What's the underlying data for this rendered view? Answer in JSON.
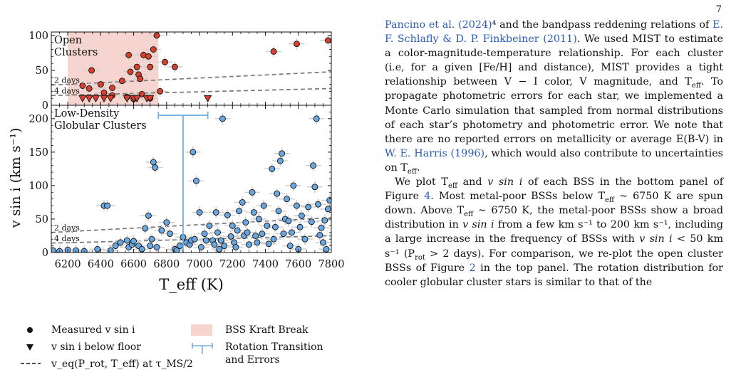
{
  "page_number": "7",
  "figure": {
    "top_panel": {
      "label_line1": "Open",
      "label_line2": "Clusters",
      "yticks": [
        "100",
        "50",
        "0"
      ],
      "curve_labels": [
        "2 days",
        "4 days"
      ]
    },
    "bottom_panel": {
      "label_line1": "Low-Density",
      "label_line2": "Globular Clusters",
      "yticks": [
        "200",
        "150",
        "100",
        "50",
        "0"
      ],
      "curve_labels": [
        "2 days",
        "4 days"
      ]
    },
    "ylabel": "v sin i (km s⁻¹)",
    "xlabel": "T_eff (K)",
    "xticks": [
      "6200",
      "6400",
      "6600",
      "6800",
      "7000",
      "7200",
      "7400",
      "7600",
      "7800"
    ],
    "colors": {
      "open": "#d7402e",
      "globular": "#6aa7e0",
      "kraft": "#f6d4d0",
      "transition": "#6fb1e0",
      "curve": "#7a7a7a"
    }
  },
  "chart_data": [
    {
      "type": "scatter",
      "title": "",
      "series_name": "Open Clusters",
      "xlim": [
        6100,
        7800
      ],
      "ylim": [
        0,
        105
      ],
      "kraft_break": [
        6200,
        6750
      ],
      "measured": [
        [
          6290,
          28
        ],
        [
          6330,
          24
        ],
        [
          6345,
          50
        ],
        [
          6400,
          30
        ],
        [
          6420,
          18
        ],
        [
          6470,
          25
        ],
        [
          6530,
          35
        ],
        [
          6570,
          72
        ],
        [
          6580,
          48
        ],
        [
          6620,
          55
        ],
        [
          6630,
          44
        ],
        [
          6640,
          38
        ],
        [
          6660,
          72
        ],
        [
          6690,
          70
        ],
        [
          6700,
          55
        ],
        [
          6720,
          80
        ],
        [
          6740,
          100
        ],
        [
          6760,
          20
        ],
        [
          6790,
          62
        ],
        [
          6850,
          55
        ],
        [
          7450,
          77
        ],
        [
          7590,
          88
        ],
        [
          7780,
          93
        ],
        [
          6470,
          14
        ],
        [
          6560,
          12
        ],
        [
          6650,
          16
        ],
        [
          6700,
          10
        ],
        [
          6600,
          9
        ]
      ],
      "floor_points": [
        [
          6290,
          10
        ],
        [
          6330,
          10
        ],
        [
          6370,
          10
        ],
        [
          6420,
          10
        ],
        [
          6460,
          10
        ],
        [
          6560,
          10
        ],
        [
          6600,
          10
        ],
        [
          6620,
          10
        ],
        [
          6680,
          10
        ],
        [
          6700,
          10
        ],
        [
          7050,
          10
        ]
      ],
      "curves": {
        "2 days": [
          [
            6100,
            29
          ],
          [
            7800,
            48
          ]
        ],
        "4 days": [
          [
            6100,
            14
          ],
          [
            7800,
            24
          ]
        ]
      }
    },
    {
      "type": "scatter",
      "title": "",
      "series_name": "Low-Density Globular Clusters",
      "xlim": [
        6100,
        7800
      ],
      "ylim": [
        0,
        220
      ],
      "transition": {
        "x": 6900,
        "xerr": [
          6750,
          7050
        ],
        "y": 205
      },
      "measured": [
        [
          6110,
          3
        ],
        [
          6150,
          2
        ],
        [
          6200,
          4
        ],
        [
          6250,
          3
        ],
        [
          6300,
          2
        ],
        [
          6380,
          5
        ],
        [
          6420,
          70
        ],
        [
          6440,
          70
        ],
        [
          6460,
          3
        ],
        [
          6490,
          10
        ],
        [
          6520,
          15
        ],
        [
          6560,
          18
        ],
        [
          6570,
          8
        ],
        [
          6590,
          12
        ],
        [
          6600,
          17
        ],
        [
          6630,
          10
        ],
        [
          6650,
          5
        ],
        [
          6670,
          36
        ],
        [
          6690,
          55
        ],
        [
          6700,
          10
        ],
        [
          6710,
          20
        ],
        [
          6720,
          135
        ],
        [
          6730,
          127
        ],
        [
          6740,
          8
        ],
        [
          6770,
          33
        ],
        [
          6800,
          45
        ],
        [
          6820,
          28
        ],
        [
          6850,
          5
        ],
        [
          6860,
          3
        ],
        [
          6880,
          10
        ],
        [
          6900,
          23
        ],
        [
          6920,
          15
        ],
        [
          6940,
          12
        ],
        [
          6950,
          18
        ],
        [
          6960,
          150
        ],
        [
          6970,
          20
        ],
        [
          6980,
          107
        ],
        [
          7000,
          60
        ],
        [
          7010,
          8
        ],
        [
          7030,
          28
        ],
        [
          7040,
          18
        ],
        [
          7060,
          40
        ],
        [
          7080,
          18
        ],
        [
          7090,
          12
        ],
        [
          7100,
          60
        ],
        [
          7110,
          30
        ],
        [
          7120,
          5
        ],
        [
          7130,
          18
        ],
        [
          7140,
          200
        ],
        [
          7150,
          10
        ],
        [
          7170,
          56
        ],
        [
          7190,
          24
        ],
        [
          7200,
          40
        ],
        [
          7210,
          15
        ],
        [
          7220,
          8
        ],
        [
          7230,
          33
        ],
        [
          7240,
          62
        ],
        [
          7260,
          75
        ],
        [
          7270,
          25
        ],
        [
          7280,
          45
        ],
        [
          7290,
          30
        ],
        [
          7300,
          12
        ],
        [
          7320,
          90
        ],
        [
          7330,
          60
        ],
        [
          7340,
          25
        ],
        [
          7350,
          15
        ],
        [
          7360,
          50
        ],
        [
          7380,
          28
        ],
        [
          7390,
          70
        ],
        [
          7410,
          40
        ],
        [
          7420,
          13
        ],
        [
          7440,
          125
        ],
        [
          7450,
          20
        ],
        [
          7460,
          38
        ],
        [
          7470,
          88
        ],
        [
          7480,
          62
        ],
        [
          7490,
          137
        ],
        [
          7500,
          148
        ],
        [
          7510,
          28
        ],
        [
          7520,
          50
        ],
        [
          7530,
          80
        ],
        [
          7540,
          47
        ],
        [
          7550,
          10
        ],
        [
          7560,
          30
        ],
        [
          7570,
          100
        ],
        [
          7590,
          70
        ],
        [
          7600,
          5
        ],
        [
          7610,
          38
        ],
        [
          7620,
          55
        ],
        [
          7640,
          20
        ],
        [
          7660,
          68
        ],
        [
          7680,
          46
        ],
        [
          7690,
          130
        ],
        [
          7700,
          98
        ],
        [
          7710,
          200
        ],
        [
          7720,
          72
        ],
        [
          7730,
          26
        ],
        [
          7740,
          37
        ],
        [
          7750,
          15
        ],
        [
          7760,
          48
        ],
        [
          7770,
          5
        ],
        [
          7780,
          65
        ],
        [
          7790,
          78
        ]
      ],
      "curves": {
        "2 days": [
          [
            6100,
            30
          ],
          [
            7800,
            52
          ]
        ],
        "4 days": [
          [
            6100,
            14
          ],
          [
            7800,
            25
          ]
        ]
      }
    }
  ],
  "legend": {
    "measured": "Measured v sin i",
    "below_floor": "v sin i below floor",
    "veq": "v_eq(P_rot, T_eff) at τ_MS/2",
    "kraft": "BSS Kraft Break",
    "transition_line1": "Rotation Transition",
    "transition_line2": "and Errors"
  },
  "text": {
    "p1": [
      {
        "t": "Pancino et al. (2024)",
        "c": "link"
      },
      {
        "t": "⁴",
        "c": ""
      },
      {
        "t": " and the bandpass reddening relations of ",
        "c": ""
      },
      {
        "t": "E. F. Schlafly & D. P. Finkbeiner (2011)",
        "c": "link"
      },
      {
        "t": ". We used MIST to estimate a color-magnitude-temperature relationship. For each cluster (i.e, for a given [Fe/H] and distance), MIST provides a tight relationship between V − I color, V magnitude, and T",
        "c": ""
      },
      {
        "t": "eff",
        "c": "sub"
      },
      {
        "t": ". To propagate photometric errors for each star, we implemented a Monte Carlo simulation that sampled from normal distributions of each star’s photometry and photometric error. We note that there are no reported errors on metallicity or average E(B-V) in ",
        "c": ""
      },
      {
        "t": "W. E. Harris (1996)",
        "c": "link"
      },
      {
        "t": ", which would also contribute to uncertainties on T",
        "c": ""
      },
      {
        "t": "eff",
        "c": "sub"
      },
      {
        "t": ".",
        "c": ""
      }
    ],
    "p2": [
      {
        "t": "We plot T",
        "c": ""
      },
      {
        "t": "eff",
        "c": "sub"
      },
      {
        "t": " and ",
        "c": ""
      },
      {
        "t": "v sin i",
        "c": "ital"
      },
      {
        "t": " of each BSS in the bottom panel of Figure ",
        "c": ""
      },
      {
        "t": "4",
        "c": "link"
      },
      {
        "t": ". Most metal-poor BSSs below T",
        "c": ""
      },
      {
        "t": "eff",
        "c": "sub"
      },
      {
        "t": " ∼ 6750 K are spun down. Above T",
        "c": ""
      },
      {
        "t": "eff",
        "c": "sub"
      },
      {
        "t": " ∼ 6750 K, the metal-poor BSSs show a broad distribution in ",
        "c": ""
      },
      {
        "t": "v sin i",
        "c": "ital"
      },
      {
        "t": " from a few km s⁻¹ to 200 km s⁻¹, including a large increase in the frequency of BSSs with ",
        "c": ""
      },
      {
        "t": "v sin i",
        "c": "ital"
      },
      {
        "t": " < 50 km s⁻¹ (P",
        "c": ""
      },
      {
        "t": "rot",
        "c": "sub"
      },
      {
        "t": " > 2 days). For comparison, we re-plot the open cluster BSSs of Figure ",
        "c": ""
      },
      {
        "t": "2",
        "c": "link"
      },
      {
        "t": " in the top panel. The rotation distribution for cooler globular cluster stars is similar to that of the",
        "c": ""
      }
    ]
  }
}
